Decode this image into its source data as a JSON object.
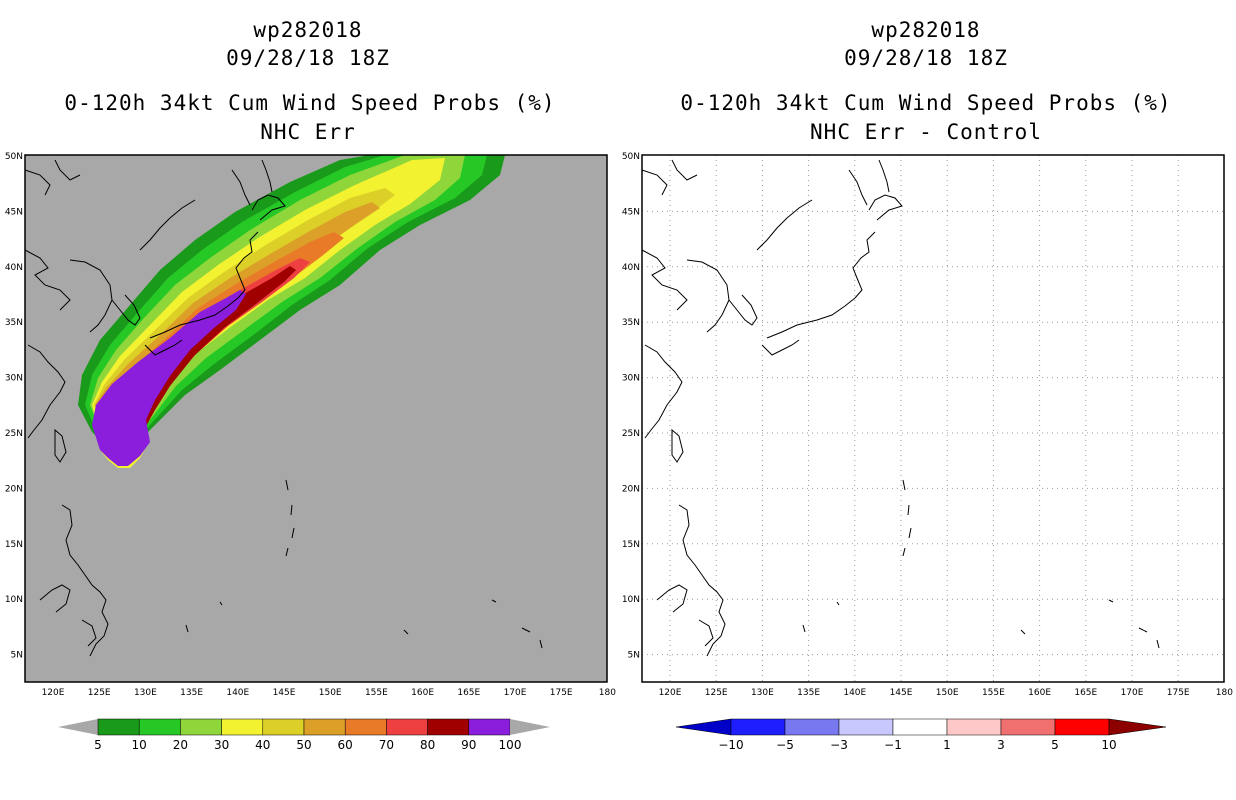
{
  "left": {
    "title_id": "wp282018",
    "title_time": "09/28/18 18Z",
    "title_main": "0-120h 34kt Cum Wind Speed Probs (%)",
    "title_sub": "NHC Err",
    "colorbar_labels": [
      "5",
      "10",
      "20",
      "30",
      "40",
      "50",
      "60",
      "70",
      "80",
      "90",
      "100"
    ],
    "colorbar_colors": [
      "#1a9a1a",
      "#26c826",
      "#8ed63a",
      "#f2f230",
      "#dcd028",
      "#dca028",
      "#e87a28",
      "#ee4040",
      "#a00000",
      "#8a1edc"
    ]
  },
  "right": {
    "title_id": "wp282018",
    "title_time": "09/28/18 18Z",
    "title_main": "0-120h 34kt Cum Wind Speed Probs (%)",
    "title_sub": "NHC Err - Control",
    "colorbar_labels": [
      "−10",
      "−5",
      "−3",
      "−1",
      "1",
      "3",
      "5",
      "10"
    ],
    "colorbar_colors": [
      "#0000c8",
      "#1e1eff",
      "#7878f0",
      "#c8c8ff",
      "#ffffff",
      "#ffc8c8",
      "#f07070",
      "#ff0000",
      "#8c0000"
    ]
  },
  "axes": {
    "lat_labels": [
      "50N",
      "45N",
      "40N",
      "35N",
      "30N",
      "25N",
      "20N",
      "15N",
      "10N",
      "5N"
    ],
    "lon_labels": [
      "120E",
      "125E",
      "130E",
      "135E",
      "140E",
      "145E",
      "150E",
      "155E",
      "160E",
      "165E",
      "170E",
      "175E",
      "180"
    ]
  },
  "colors": {
    "background_gray": "#a8a8a8",
    "grid": "#9a9a9a"
  }
}
